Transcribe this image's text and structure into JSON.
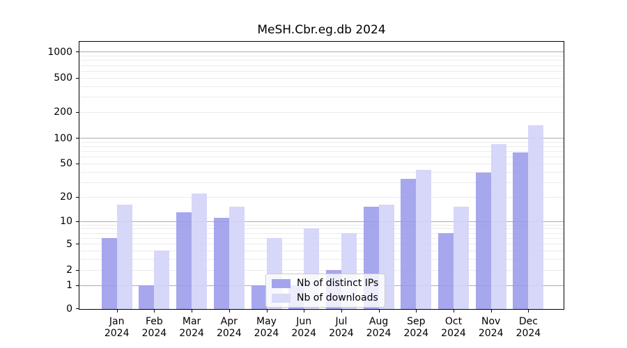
{
  "chart_data": {
    "type": "bar",
    "title": "MeSH.Cbr.eg.db 2024",
    "categories": [
      "Jan",
      "Feb",
      "Mar",
      "Apr",
      "May",
      "Jun",
      "Jul",
      "Aug",
      "Sep",
      "Oct",
      "Nov",
      "Dec"
    ],
    "category_year": "2024",
    "series": [
      {
        "name": "Nb of distinct IPs",
        "color": "#a4a4ee",
        "bar_rgba": "rgba(152,152,235,0.85)",
        "values": [
          6,
          1,
          13,
          11,
          1,
          1,
          2,
          15,
          33,
          7,
          39,
          68
        ]
      },
      {
        "name": "Nb of downloads",
        "color": "#d9d9f8",
        "bar_rgba": "rgba(211,211,248,0.9)",
        "values": [
          16,
          4,
          22,
          15,
          6,
          8,
          7,
          16,
          42,
          15,
          85,
          140
        ]
      }
    ],
    "xlabel": "",
    "ylabel": "",
    "yscale": "log1p",
    "ytick_values": [
      0,
      1,
      2,
      5,
      10,
      20,
      50,
      100,
      200,
      500,
      1000
    ],
    "ylim": [
      0,
      1300
    ],
    "grid": "horizontal major + minor log gridlines",
    "legend_position": "inside lower-center"
  }
}
